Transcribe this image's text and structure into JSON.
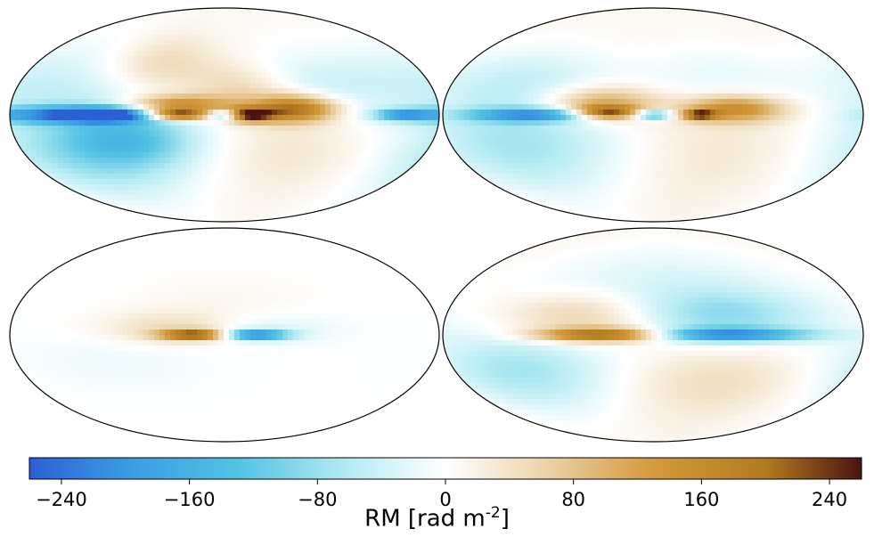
{
  "chart_data": {
    "type": "heatmap",
    "projection": "mollweide",
    "layout": "2x2 grid",
    "colorbar": {
      "min": -260,
      "max": 260,
      "ticks": [
        -240,
        -160,
        -80,
        0,
        80,
        160,
        240
      ],
      "tick_labels": [
        "−240",
        "−160",
        "−80",
        "0",
        "80",
        "160",
        "240"
      ],
      "label_prefix": "RM [rad m",
      "label_exponent": "-2",
      "label_suffix": "]",
      "colormap": [
        {
          "v": -260,
          "c": "#2a5fd6"
        },
        {
          "v": -200,
          "c": "#3a9be3"
        },
        {
          "v": -130,
          "c": "#52c3e3"
        },
        {
          "v": -60,
          "c": "#b6ecf3"
        },
        {
          "v": 0,
          "c": "#ffffff"
        },
        {
          "v": 60,
          "c": "#ecd5ad"
        },
        {
          "v": 130,
          "c": "#d49a3c"
        },
        {
          "v": 200,
          "c": "#b27a1f"
        },
        {
          "v": 260,
          "c": "#4a1410"
        }
      ]
    },
    "panels": [
      {
        "background": 8,
        "features": [
          {
            "l": 130,
            "b": 25,
            "sl": 80,
            "sb": 25,
            "v": -55
          },
          {
            "l": 120,
            "b": -35,
            "sl": 70,
            "sb": 25,
            "v": -95
          },
          {
            "l": 80,
            "b": -20,
            "sl": 40,
            "sb": 15,
            "v": -90
          },
          {
            "l": 140,
            "b": 0,
            "sl": 50,
            "sb": 5,
            "v": -170
          },
          {
            "l": 100,
            "b": 0,
            "sl": 25,
            "sb": 4,
            "v": -220
          },
          {
            "l": 60,
            "b": 40,
            "sl": 40,
            "sb": 18,
            "v": 70
          },
          {
            "l": 40,
            "b": 8,
            "sl": 30,
            "sb": 6,
            "v": 160
          },
          {
            "l": 40,
            "b": 0,
            "sl": 18,
            "sb": 3,
            "v": 230
          },
          {
            "l": 0,
            "b": 0,
            "sl": 10,
            "sb": 3,
            "v": -200
          },
          {
            "l": -20,
            "b": 0,
            "sl": 15,
            "sb": 4,
            "v": 240
          },
          {
            "l": -15,
            "b": 20,
            "sl": 30,
            "sb": 15,
            "v": 60
          },
          {
            "l": -60,
            "b": 5,
            "sl": 25,
            "sb": 8,
            "v": 200
          },
          {
            "l": -80,
            "b": 25,
            "sl": 50,
            "sb": 20,
            "v": -40
          },
          {
            "l": -60,
            "b": -30,
            "sl": 80,
            "sb": 25,
            "v": 30
          },
          {
            "l": -150,
            "b": 0,
            "sl": 15,
            "sb": 3,
            "v": -150
          }
        ]
      },
      {
        "background": 10,
        "features": [
          {
            "l": 120,
            "b": -25,
            "sl": 70,
            "sb": 30,
            "v": -85
          },
          {
            "l": 120,
            "b": 30,
            "sl": 60,
            "sb": 20,
            "v": -45
          },
          {
            "l": 100,
            "b": 0,
            "sl": 40,
            "sb": 4,
            "v": -190
          },
          {
            "l": 45,
            "b": 10,
            "sl": 35,
            "sb": 10,
            "v": 120
          },
          {
            "l": 40,
            "b": 2,
            "sl": 20,
            "sb": 4,
            "v": 210
          },
          {
            "l": 0,
            "b": 0,
            "sl": 12,
            "sb": 3,
            "v": -180
          },
          {
            "l": -40,
            "b": 0,
            "sl": 10,
            "sb": 3,
            "v": 200
          },
          {
            "l": -70,
            "b": 5,
            "sl": 30,
            "sb": 8,
            "v": 150
          },
          {
            "l": -60,
            "b": 30,
            "sl": 50,
            "sb": 20,
            "v": -30
          },
          {
            "l": -60,
            "b": -30,
            "sl": 80,
            "sb": 30,
            "v": 25
          }
        ]
      },
      {
        "background": 0,
        "features": [
          {
            "l": 40,
            "b": 5,
            "sl": 45,
            "sb": 10,
            "v": 55
          },
          {
            "l": 25,
            "b": 0,
            "sl": 20,
            "sb": 3,
            "v": 240
          },
          {
            "l": -25,
            "b": 0,
            "sl": 20,
            "sb": 3,
            "v": -230
          },
          {
            "l": -30,
            "b": 5,
            "sl": 45,
            "sb": 10,
            "v": -40
          },
          {
            "l": 0,
            "b": 20,
            "sl": 60,
            "sb": 20,
            "v": 12
          },
          {
            "l": 90,
            "b": -20,
            "sl": 60,
            "sb": 20,
            "v": -15
          }
        ]
      },
      {
        "background": 12,
        "features": [
          {
            "l": -10,
            "b": 40,
            "sl": 100,
            "sb": 25,
            "v": -45
          },
          {
            "l": -60,
            "b": 15,
            "sl": 60,
            "sb": 15,
            "v": -80
          },
          {
            "l": -60,
            "b": 0,
            "sl": 50,
            "sb": 4,
            "v": -200
          },
          {
            "l": 60,
            "b": 15,
            "sl": 50,
            "sb": 15,
            "v": 80
          },
          {
            "l": 40,
            "b": 0,
            "sl": 40,
            "sb": 4,
            "v": 220
          },
          {
            "l": 120,
            "b": -30,
            "sl": 60,
            "sb": 25,
            "v": -85
          },
          {
            "l": -60,
            "b": -40,
            "sl": 60,
            "sb": 20,
            "v": 35
          }
        ]
      }
    ]
  }
}
